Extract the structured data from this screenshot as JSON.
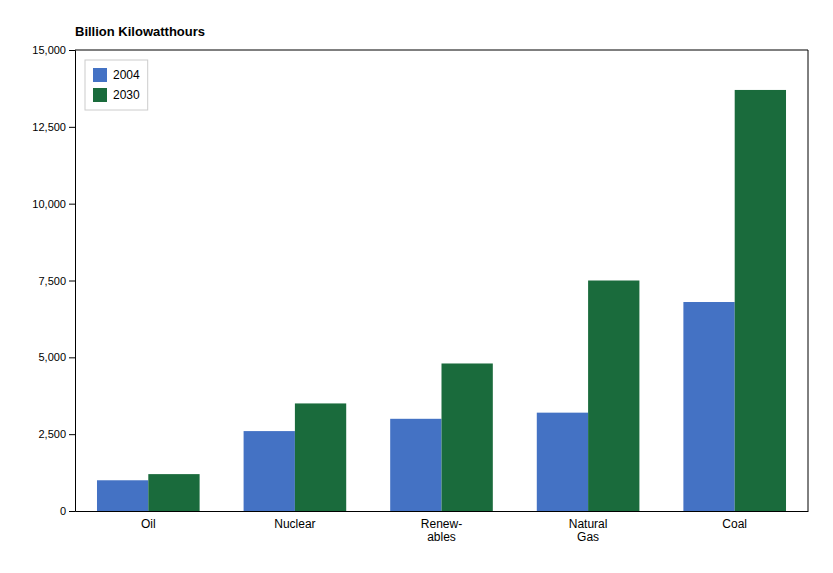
{
  "chart_data": {
    "type": "bar",
    "ylabel": "Billion Kilowatthours",
    "categories": [
      "Oil",
      "Nuclear",
      "Renew-\nables",
      "Natural\nGas",
      "Coal"
    ],
    "series": [
      {
        "name": "2004",
        "color": "#4472C4",
        "values": [
          1000,
          2600,
          3000,
          3200,
          6800
        ]
      },
      {
        "name": "2030",
        "color": "#1A6B3C",
        "values": [
          1200,
          3500,
          4800,
          7500,
          13700
        ]
      }
    ],
    "ylim": [
      0,
      15000
    ],
    "yticks": [
      0,
      {
        "value": 2500,
        "label": "2,500"
      },
      {
        "value": 5000,
        "label": "5,000"
      },
      {
        "value": 7500,
        "label": "7,500"
      },
      {
        "value": 10000,
        "label": "10,000"
      },
      {
        "value": 12500,
        "label": "12,500"
      },
      {
        "value": 15000,
        "label": "15,000"
      }
    ],
    "grid": false,
    "legend": "upper left"
  }
}
